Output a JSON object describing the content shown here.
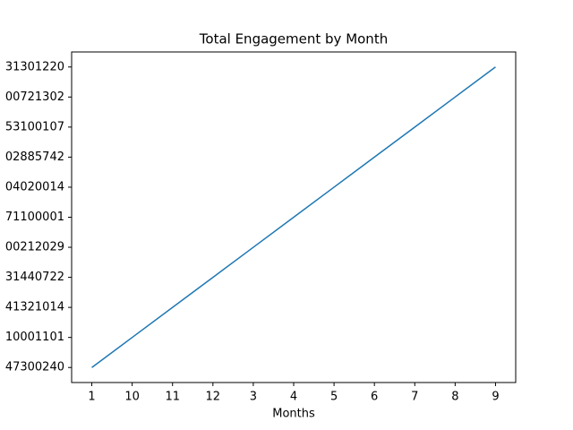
{
  "chart_data": {
    "type": "line",
    "title": "Total Engagement by Month",
    "x_label": "Months",
    "categories": [
      "1",
      "10",
      "11",
      "12",
      "3",
      "4",
      "5",
      "6",
      "7",
      "8",
      "9"
    ],
    "series": [
      {
        "color": "#1f77b4",
        "values": [
          0,
          1,
          2,
          3,
          4,
          5,
          6,
          7,
          8,
          9,
          10
        ]
      }
    ],
    "ylim": [
      -0.5,
      10.5
    ],
    "yticks": [
      {
        "value": 0,
        "label": "47300240"
      },
      {
        "value": 1,
        "label": "10001101"
      },
      {
        "value": 2,
        "label": "41321014"
      },
      {
        "value": 3,
        "label": "31440722"
      },
      {
        "value": 4,
        "label": "00212029"
      },
      {
        "value": 5,
        "label": "71100001"
      },
      {
        "value": 6,
        "label": "04020014"
      },
      {
        "value": 7,
        "label": "02885742"
      },
      {
        "value": 8,
        "label": "53100107"
      },
      {
        "value": 9,
        "label": "00721302"
      },
      {
        "value": 10,
        "label": "31301220"
      }
    ],
    "grid": false
  }
}
